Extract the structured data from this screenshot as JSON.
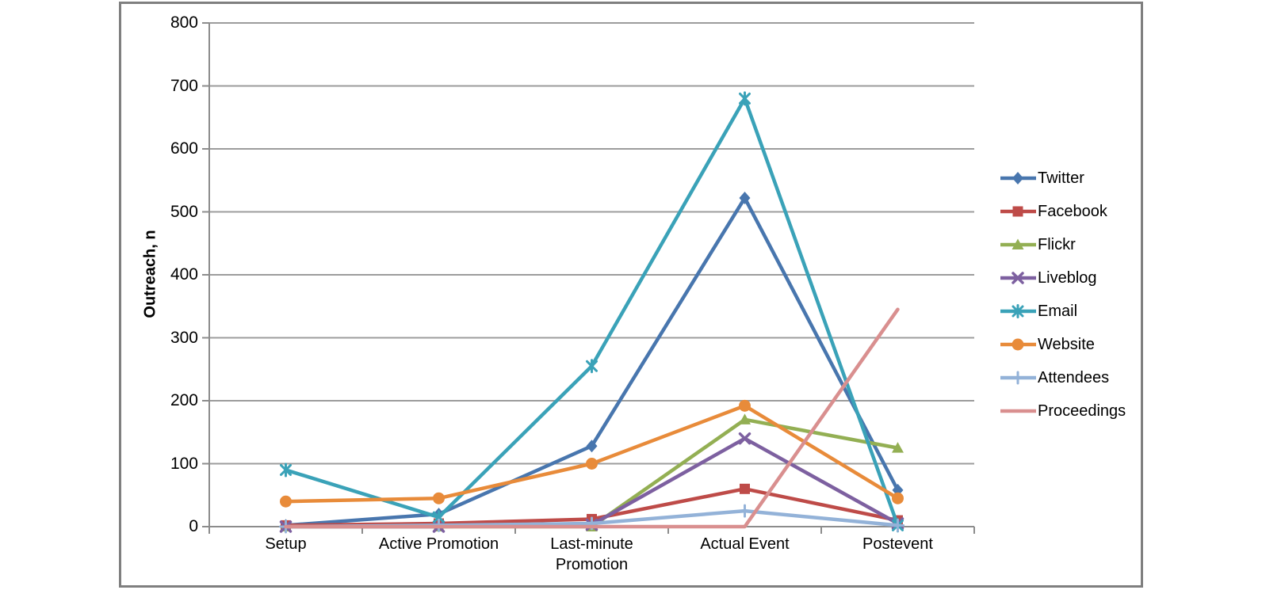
{
  "chart_data": {
    "type": "line",
    "title": "",
    "xlabel": "",
    "ylabel": "Outreach, n",
    "ylim": [
      0,
      800
    ],
    "ytick_step": 100,
    "yticks": [
      0,
      100,
      200,
      300,
      400,
      500,
      600,
      700,
      800
    ],
    "categories": [
      "Setup",
      "Active Promotion",
      "Last-minute Promotion",
      "Actual Event",
      "Postevent"
    ],
    "grid": "horizontal-on",
    "legend_position": "right",
    "colors": {
      "axis": "#8c8c8c",
      "gridline": "#9c9c9c",
      "frame_border": "#7f7f7f",
      "background": "#ffffff"
    },
    "series": [
      {
        "name": "Twitter",
        "color": "#4876ae",
        "marker": "diamond",
        "values": [
          2,
          20,
          128,
          522,
          58
        ]
      },
      {
        "name": "Facebook",
        "color": "#be4b48",
        "marker": "square",
        "values": [
          2,
          5,
          12,
          60,
          10
        ]
      },
      {
        "name": "Flickr",
        "color": "#93af53",
        "marker": "triangle",
        "values": [
          0,
          0,
          0,
          170,
          125
        ]
      },
      {
        "name": "Liveblog",
        "color": "#7d60a0",
        "marker": "x",
        "values": [
          0,
          0,
          3,
          140,
          5
        ]
      },
      {
        "name": "Email",
        "color": "#3aa2b8",
        "marker": "asterisk",
        "values": [
          90,
          15,
          255,
          680,
          2
        ]
      },
      {
        "name": "Website",
        "color": "#e88b3a",
        "marker": "circle",
        "values": [
          40,
          45,
          100,
          192,
          45
        ]
      },
      {
        "name": "Attendees",
        "color": "#93b2d8",
        "marker": "plus",
        "values": [
          0,
          2,
          5,
          25,
          2
        ]
      },
      {
        "name": "Proceedings",
        "color": "#d98f8f",
        "marker": "none",
        "values": [
          0,
          0,
          0,
          0,
          345
        ]
      }
    ]
  }
}
